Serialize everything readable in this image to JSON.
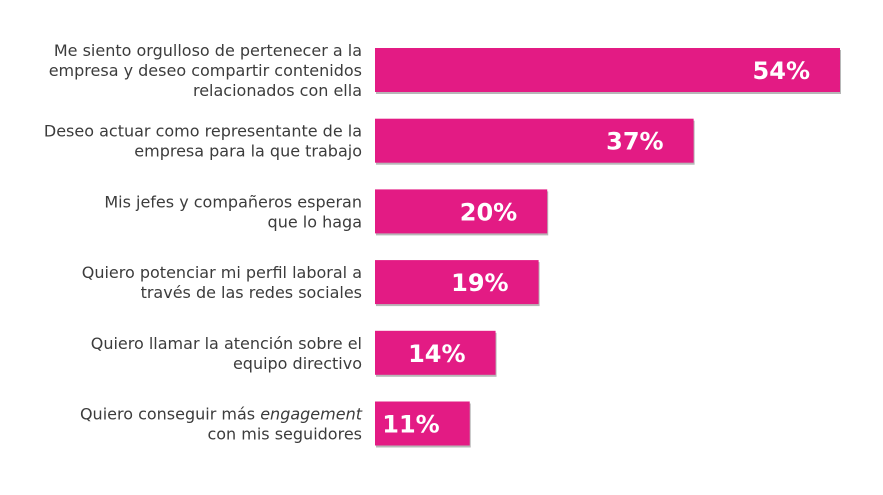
{
  "chart_data": {
    "type": "bar",
    "orientation": "horizontal",
    "categories": [
      "Me siento orgulloso de pertenecer a la empresa y deseo compartir contenidos relacionados con ella",
      "Deseo actuar como representante de la empresa para la que trabajo",
      "Mis jefes y compañeros esperan que lo haga",
      "Quiero potenciar mi perfil laboral a través de las redes sociales",
      "Quiero llamar la atención sobre el equipo directivo",
      "Quiero conseguir más engagement con mis seguidores"
    ],
    "category_lines": [
      [
        [
          {
            "t": "Me siento orgulloso de pertenecer a la"
          }
        ],
        [
          {
            "t": "empresa y deseo compartir contenidos"
          }
        ],
        [
          {
            "t": "relacionados con ella"
          }
        ]
      ],
      [
        [
          {
            "t": "Deseo actuar como representante de la"
          }
        ],
        [
          {
            "t": "empresa para la que trabajo"
          }
        ]
      ],
      [
        [
          {
            "t": "Mis jefes y compañeros esperan"
          }
        ],
        [
          {
            "t": "que lo haga"
          }
        ]
      ],
      [
        [
          {
            "t": "Quiero potenciar mi perfil laboral a"
          }
        ],
        [
          {
            "t": "través de las redes sociales"
          }
        ]
      ],
      [
        [
          {
            "t": "Quiero llamar la atención sobre el"
          }
        ],
        [
          {
            "t": "equipo directivo"
          }
        ]
      ],
      [
        [
          {
            "t": "Quiero conseguir más "
          },
          {
            "t": "engagement",
            "em": true
          }
        ],
        [
          {
            "t": "con mis seguidores"
          }
        ]
      ]
    ],
    "values": [
      54,
      37,
      20,
      19,
      14,
      11
    ],
    "value_labels": [
      "54%",
      "37%",
      "20%",
      "19%",
      "14%",
      "11%"
    ],
    "unit": "%",
    "title": "",
    "xlabel": "",
    "ylabel": "",
    "xlim": [
      0,
      54
    ],
    "grid": false,
    "legend": "none",
    "colors": {
      "bar": "#e31b84",
      "bar_shadow": "#b7b7b7",
      "value_text": "#ffffff",
      "category_text": "#3c3c3c",
      "background": "#ffffff"
    }
  }
}
